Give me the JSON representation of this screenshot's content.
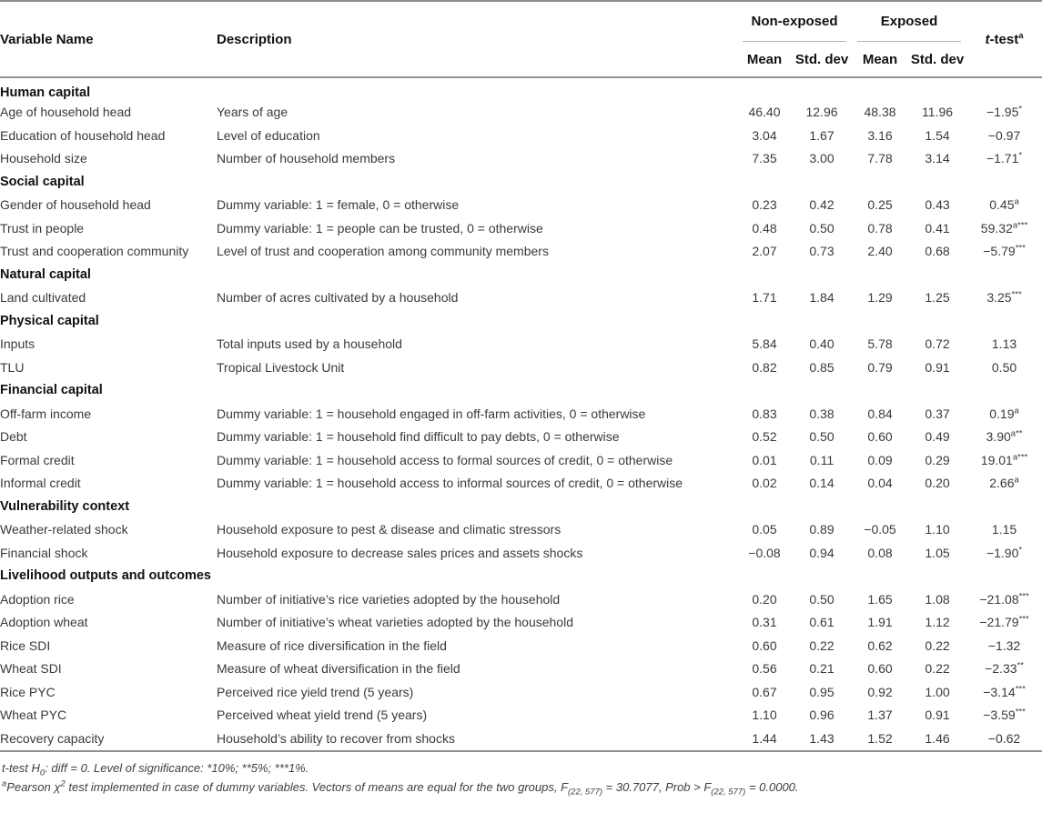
{
  "table": {
    "headers": {
      "variable": "Variable Name",
      "description": "Description",
      "group_nonexposed": "Non-exposed",
      "group_exposed": "Exposed",
      "ttest_pre": "t",
      "ttest_post": "-test",
      "ttest_sup": "a",
      "mean1": "Mean",
      "std1": "Std. dev",
      "mean2": "Mean",
      "std2": "Std. dev"
    },
    "rows": [
      {
        "type": "section",
        "label": "Human capital"
      },
      {
        "type": "data",
        "variable": "Age of household head",
        "description": "Years of age",
        "ne_mean": "46.40",
        "ne_std": "12.96",
        "ex_mean": "48.38",
        "ex_std": "11.96",
        "t": "−1.95",
        "t_sup": "*"
      },
      {
        "type": "data",
        "variable": "Education of household head",
        "description": "Level of education",
        "ne_mean": "3.04",
        "ne_std": "1.67",
        "ex_mean": "3.16",
        "ex_std": "1.54",
        "t": "−0.97",
        "t_sup": ""
      },
      {
        "type": "data",
        "variable": "Household size",
        "description": "Number of household members",
        "ne_mean": "7.35",
        "ne_std": "3.00",
        "ex_mean": "7.78",
        "ex_std": "3.14",
        "t": "−1.71",
        "t_sup": "*"
      },
      {
        "type": "section",
        "label": "Social capital"
      },
      {
        "type": "data",
        "variable": "Gender of household head",
        "description": "Dummy variable: 1 = female, 0 = otherwise",
        "ne_mean": "0.23",
        "ne_std": "0.42",
        "ex_mean": "0.25",
        "ex_std": "0.43",
        "t": "0.45",
        "t_sup": "a"
      },
      {
        "type": "data",
        "variable": "Trust in people",
        "description": "Dummy variable: 1 = people can be trusted, 0 = otherwise",
        "ne_mean": "0.48",
        "ne_std": "0.50",
        "ex_mean": "0.78",
        "ex_std": "0.41",
        "t": "59.32",
        "t_sup": "a***"
      },
      {
        "type": "data",
        "variable": "Trust and cooperation community",
        "description": "Level of trust and cooperation among community members",
        "ne_mean": "2.07",
        "ne_std": "0.73",
        "ex_mean": "2.40",
        "ex_std": "0.68",
        "t": "−5.79",
        "t_sup": "***"
      },
      {
        "type": "section",
        "label": "Natural capital"
      },
      {
        "type": "data",
        "variable": "Land cultivated",
        "description": "Number of acres cultivated by a household",
        "ne_mean": "1.71",
        "ne_std": "1.84",
        "ex_mean": "1.29",
        "ex_std": "1.25",
        "t": "3.25",
        "t_sup": "***"
      },
      {
        "type": "section",
        "label": "Physical capital"
      },
      {
        "type": "data",
        "variable": "Inputs",
        "description": "Total inputs used by a household",
        "ne_mean": "5.84",
        "ne_std": "0.40",
        "ex_mean": "5.78",
        "ex_std": "0.72",
        "t": "1.13",
        "t_sup": ""
      },
      {
        "type": "data",
        "variable": "TLU",
        "description": "Tropical Livestock Unit",
        "ne_mean": "0.82",
        "ne_std": "0.85",
        "ex_mean": "0.79",
        "ex_std": "0.91",
        "t": "0.50",
        "t_sup": ""
      },
      {
        "type": "section",
        "label": "Financial capital"
      },
      {
        "type": "data",
        "variable": "Off-farm income",
        "description": "Dummy variable: 1 = household engaged in off-farm activities, 0 = otherwise",
        "ne_mean": "0.83",
        "ne_std": "0.38",
        "ex_mean": "0.84",
        "ex_std": "0.37",
        "t": "0.19",
        "t_sup": "a"
      },
      {
        "type": "data",
        "variable": "Debt",
        "description": "Dummy variable: 1 = household find difficult to pay debts, 0 = otherwise",
        "ne_mean": "0.52",
        "ne_std": "0.50",
        "ex_mean": "0.60",
        "ex_std": "0.49",
        "t": "3.90",
        "t_sup": "a**"
      },
      {
        "type": "data",
        "variable": "Formal credit",
        "description": "Dummy variable: 1 = household access to formal sources of credit, 0 = otherwise",
        "ne_mean": "0.01",
        "ne_std": "0.11",
        "ex_mean": "0.09",
        "ex_std": "0.29",
        "t": "19.01",
        "t_sup": "a***"
      },
      {
        "type": "data",
        "variable": "Informal credit",
        "description": "Dummy variable: 1 = household access to informal sources of credit, 0 = otherwise",
        "ne_mean": "0.02",
        "ne_std": "0.14",
        "ex_mean": "0.04",
        "ex_std": "0.20",
        "t": "2.66",
        "t_sup": "a"
      },
      {
        "type": "section",
        "label": "Vulnerability context"
      },
      {
        "type": "data",
        "variable": "Weather-related shock",
        "description": "Household exposure to pest & disease and climatic stressors",
        "ne_mean": "0.05",
        "ne_std": "0.89",
        "ex_mean": "−0.05",
        "ex_std": "1.10",
        "t": "1.15",
        "t_sup": ""
      },
      {
        "type": "data",
        "variable": "Financial shock",
        "description": "Household exposure to decrease sales prices and assets shocks",
        "ne_mean": "−0.08",
        "ne_std": "0.94",
        "ex_mean": "0.08",
        "ex_std": "1.05",
        "t": "−1.90",
        "t_sup": "*"
      },
      {
        "type": "section",
        "label": "Livelihood outputs and outcomes"
      },
      {
        "type": "data",
        "variable": "Adoption rice",
        "description": "Number of initiative’s rice varieties adopted by the household",
        "ne_mean": "0.20",
        "ne_std": "0.50",
        "ex_mean": "1.65",
        "ex_std": "1.08",
        "t": "−21.08",
        "t_sup": "***"
      },
      {
        "type": "data",
        "variable": "Adoption wheat",
        "description": "Number of initiative’s wheat varieties adopted by the household",
        "ne_mean": "0.31",
        "ne_std": "0.61",
        "ex_mean": "1.91",
        "ex_std": "1.12",
        "t": "−21.79",
        "t_sup": "***"
      },
      {
        "type": "data",
        "variable": "Rice SDI",
        "description": "Measure of rice diversification in the field",
        "ne_mean": "0.60",
        "ne_std": "0.22",
        "ex_mean": "0.62",
        "ex_std": "0.22",
        "t": "−1.32",
        "t_sup": ""
      },
      {
        "type": "data",
        "variable": "Wheat SDI",
        "description": "Measure of wheat diversification in the field",
        "ne_mean": "0.56",
        "ne_std": "0.21",
        "ex_mean": "0.60",
        "ex_std": "0.22",
        "t": "−2.33",
        "t_sup": "**"
      },
      {
        "type": "data",
        "variable": "Rice PYC",
        "description": "Perceived rice yield trend (5 years)",
        "ne_mean": "0.67",
        "ne_std": "0.95",
        "ex_mean": "0.92",
        "ex_std": "1.00",
        "t": "−3.14",
        "t_sup": "***"
      },
      {
        "type": "data",
        "variable": "Wheat PYC",
        "description": "Perceived wheat yield trend (5 years)",
        "ne_mean": "1.10",
        "ne_std": "0.96",
        "ex_mean": "1.37",
        "ex_std": "0.91",
        "t": "−3.59",
        "t_sup": "***"
      },
      {
        "type": "data",
        "variable": "Recovery capacity",
        "description": "Household’s ability to recover from shocks",
        "ne_mean": "1.44",
        "ne_std": "1.43",
        "ex_mean": "1.52",
        "ex_std": "1.46",
        "t": "−0.62",
        "t_sup": ""
      }
    ]
  },
  "footnotes": {
    "line1": {
      "p1": "t-test H",
      "sub1": "0",
      "p2": ": diff = 0. Level of significance: *10%; **5%; ***1%."
    },
    "line2": {
      "sup1": "a",
      "p1": "Pearson χ",
      "sup2": "2",
      "p2": " test implemented in case of dummy variables. Vectors of means are equal for the two groups, F",
      "sub1": "(22, 577)",
      "p3": " = 30.7077, Prob > F",
      "sub2": "(22, 577)",
      "p4": " = 0.0000."
    }
  }
}
